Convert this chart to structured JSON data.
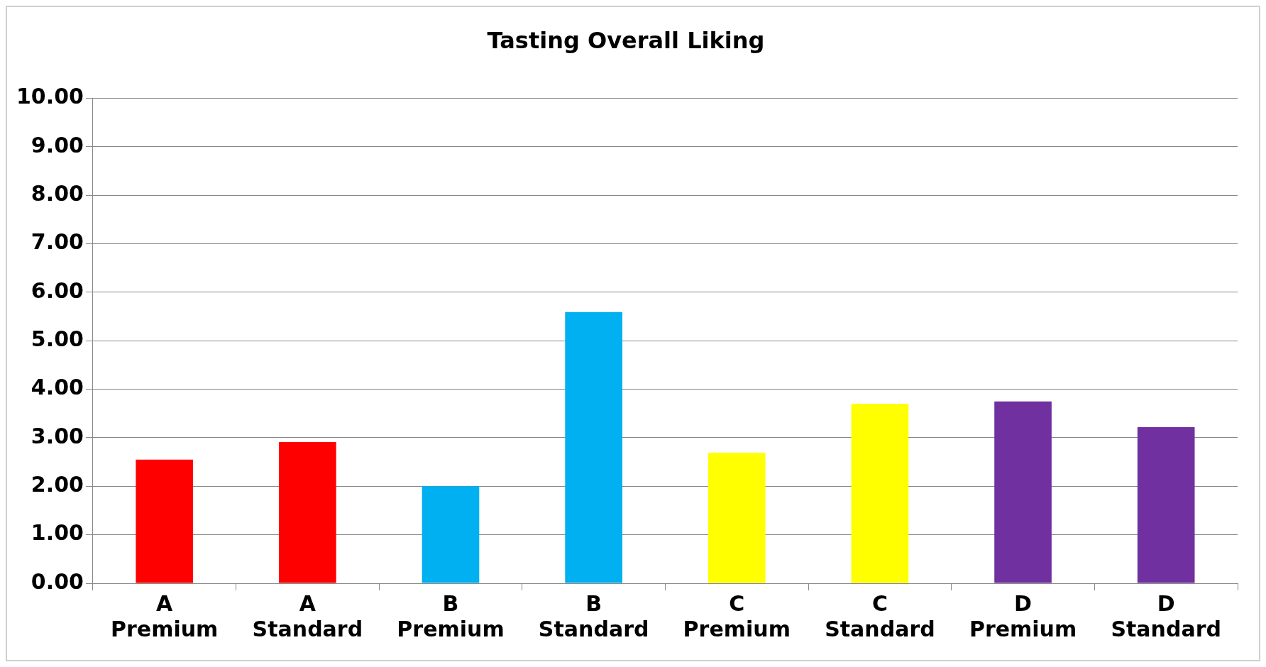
{
  "chart_data": {
    "type": "bar",
    "title": "Tasting Overall Liking",
    "categories": [
      "A Premium",
      "A Standard",
      "B Premium",
      "B Standard",
      "C Premium",
      "C Standard",
      "D Premium",
      "D Standard"
    ],
    "values": [
      2.55,
      2.91,
      2.0,
      5.59,
      2.69,
      3.7,
      3.75,
      3.22
    ],
    "colors": [
      "#ff0000",
      "#ff0000",
      "#00b0f0",
      "#00b0f0",
      "#ffff00",
      "#ffff00",
      "#7030a0",
      "#7030a0"
    ],
    "ylim": [
      0,
      10
    ],
    "yticks": [
      {
        "value": 0,
        "label": "0.00"
      },
      {
        "value": 1,
        "label": "1.00"
      },
      {
        "value": 2,
        "label": "2.00"
      },
      {
        "value": 3,
        "label": "3.00"
      },
      {
        "value": 4,
        "label": "4.00"
      },
      {
        "value": 5,
        "label": "5.00"
      },
      {
        "value": 6,
        "label": "6.00"
      },
      {
        "value": 7,
        "label": "7.00"
      },
      {
        "value": 8,
        "label": "8.00"
      },
      {
        "value": 9,
        "label": "9.00"
      },
      {
        "value": 10,
        "label": "10.00"
      }
    ],
    "grid": "y",
    "legend": false
  }
}
